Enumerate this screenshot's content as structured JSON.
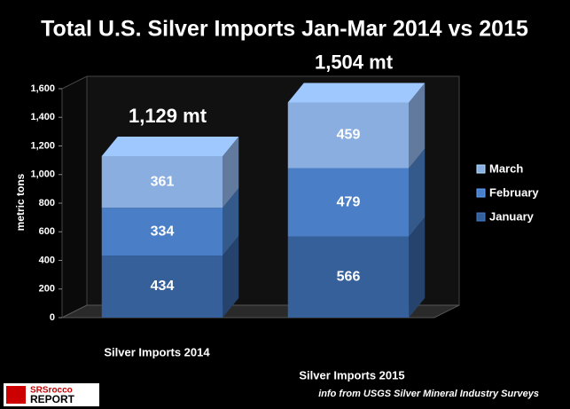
{
  "chart_data": {
    "type": "bar3d_stacked",
    "title": "Total U.S. Silver Imports Jan-Mar 2014 vs 2015",
    "ylabel": "metric tons",
    "categories": [
      "Silver Imports 2014",
      "Silver Imports 2015"
    ],
    "series": [
      {
        "name": "January",
        "color": "#35609a",
        "values": [
          434,
          566
        ]
      },
      {
        "name": "February",
        "color": "#4a7fc7",
        "values": [
          334,
          479
        ]
      },
      {
        "name": "March",
        "color": "#8aaee0",
        "values": [
          361,
          459
        ]
      }
    ],
    "annotations": [
      "1,129 mt",
      "1,504 mt"
    ],
    "ylim": [
      0,
      1600
    ],
    "yticks": [
      0,
      200,
      400,
      600,
      800,
      {
        "value": 1000,
        "label": "1,000"
      },
      {
        "value": 1200,
        "label": "1,200"
      },
      {
        "value": 1400,
        "label": "1,400"
      },
      {
        "value": 1600,
        "label": "1,600"
      }
    ],
    "grid": false,
    "legend": "right",
    "source": "info from USGS Silver Mineral Industry Surveys",
    "logo": [
      "SRSrocco",
      "REPORT"
    ]
  }
}
